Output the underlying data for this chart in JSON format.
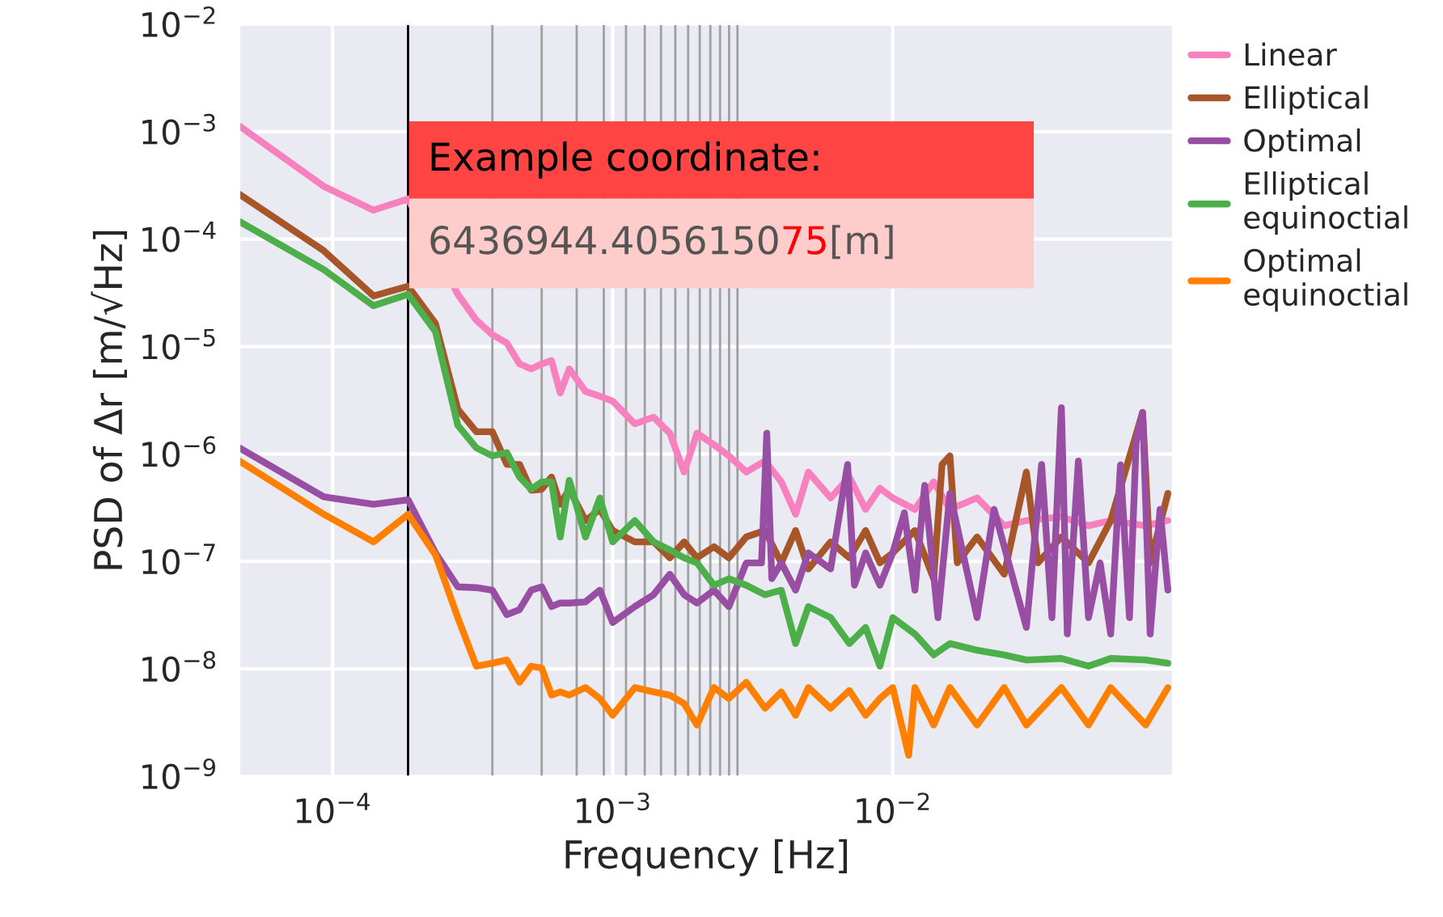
{
  "chart_data": {
    "type": "line",
    "xlabel": "Frequency [Hz]",
    "ylabel": "PSD of Δr [m/√Hz]",
    "log": "xy",
    "grid": true,
    "legend": "right",
    "marker": "none",
    "line_style": "solid",
    "xlim": [
      4.65e-05,
      0.1
    ],
    "ylim": [
      1e-09,
      0.01
    ],
    "xticks": [
      {
        "value": 0.0001,
        "label": "10$^{−4}$"
      },
      {
        "value": 0.001,
        "label": "10$^{−3}$"
      },
      {
        "value": 0.01,
        "label": "10$^{−2}$"
      }
    ],
    "yticks": [
      {
        "value": 1e-09,
        "label": "10$^{−9}$"
      },
      {
        "value": 1e-08,
        "label": "10$^{−8}$"
      },
      {
        "value": 1e-07,
        "label": "10$^{−7}$"
      },
      {
        "value": 1e-06,
        "label": "10$^{−6}$"
      },
      {
        "value": 1e-05,
        "label": "10$^{−5}$"
      },
      {
        "value": 0.0001,
        "label": "10$^{−4}$"
      },
      {
        "value": 0.001,
        "label": "10$^{−3}$"
      },
      {
        "value": 0.01,
        "label": "10$^{−2}$"
      }
    ],
    "ref_lines": [
      {
        "axis": "x",
        "value": 0.000186,
        "color": "#000000"
      },
      {
        "axis": "x",
        "value": 0.000372,
        "color": "#a0a0a0"
      },
      {
        "axis": "x",
        "value": 0.000558,
        "color": "#a0a0a0"
      },
      {
        "axis": "x",
        "value": 0.000744,
        "color": "#a0a0a0"
      },
      {
        "axis": "x",
        "value": 0.00093,
        "color": "#a0a0a0"
      },
      {
        "axis": "x",
        "value": 0.001116,
        "color": "#a0a0a0"
      },
      {
        "axis": "x",
        "value": 0.001302,
        "color": "#a0a0a0"
      },
      {
        "axis": "x",
        "value": 0.001488,
        "color": "#a0a0a0"
      },
      {
        "axis": "x",
        "value": 0.001674,
        "color": "#a0a0a0"
      },
      {
        "axis": "x",
        "value": 0.00186,
        "color": "#a0a0a0"
      },
      {
        "axis": "x",
        "value": 0.002046,
        "color": "#a0a0a0"
      },
      {
        "axis": "x",
        "value": 0.002232,
        "color": "#a0a0a0"
      },
      {
        "axis": "x",
        "value": 0.002418,
        "color": "#a0a0a0"
      },
      {
        "axis": "x",
        "value": 0.002604,
        "color": "#a0a0a0"
      },
      {
        "axis": "x",
        "value": 0.00279,
        "color": "#a0a0a0"
      }
    ],
    "annotations": [
      "Example coordinate:",
      "6436944.405615075[m]"
    ],
    "series": [
      {
        "name": "Linear",
        "color": "#f781bf",
        "x": [
          4.65e-05,
          9.3e-05,
          0.00014,
          0.000186,
          0.000233,
          0.00028,
          0.000326,
          0.000372,
          0.000419,
          0.000465,
          0.000512,
          0.000558,
          0.000605,
          0.00065,
          0.0007,
          0.0008,
          0.0009,
          0.001,
          0.0012,
          0.0014,
          0.0016,
          0.0018,
          0.002,
          0.0023,
          0.0026,
          0.003,
          0.0035,
          0.004,
          0.0045,
          0.005,
          0.006,
          0.007,
          0.008,
          0.009,
          0.01,
          0.012,
          0.014,
          0.016,
          0.02,
          0.025,
          0.03,
          0.04,
          0.05,
          0.06,
          0.08,
          0.096
        ],
        "values": [
          0.00113,
          0.00031,
          0.000186,
          0.000237,
          null,
          3.06e-05,
          1.76e-05,
          1.29e-05,
          1.08e-05,
          6.9e-06,
          6.2e-06,
          6.9e-06,
          7.4e-06,
          3.7e-06,
          6.2e-06,
          3.83e-06,
          3.45e-06,
          3.1e-06,
          1.91e-06,
          2.2e-06,
          1.56e-06,
          6.8e-07,
          1.56e-06,
          1.22e-06,
          9.6e-07,
          6.8e-07,
          8.6e-07,
          5.5e-07,
          2.75e-07,
          6.8e-07,
          3.9e-07,
          6.1e-07,
          3.05e-07,
          4.8e-07,
          3.9e-07,
          3.05e-07,
          5.5e-07,
          3.05e-07,
          3.9e-07,
          2.15e-07,
          2.4e-07,
          2.6e-07,
          2.15e-07,
          2.4e-07,
          2.15e-07,
          2.4e-07
        ]
      },
      {
        "name": "Elliptical",
        "color": "#a65628",
        "x": [
          4.65e-05,
          9.3e-05,
          0.00014,
          0.000186,
          0.000233,
          0.00028,
          0.000326,
          0.000372,
          0.000419,
          0.000465,
          0.000512,
          0.000558,
          0.000605,
          0.00065,
          0.0007,
          0.0008,
          0.0009,
          0.001,
          0.0012,
          0.0014,
          0.0016,
          0.0018,
          0.002,
          0.0023,
          0.0026,
          0.003,
          0.0035,
          0.004,
          0.0045,
          0.005,
          0.006,
          0.007,
          0.008,
          0.009,
          0.01,
          0.012,
          0.014,
          0.015,
          0.016,
          0.017,
          0.02,
          0.025,
          0.03,
          0.033,
          0.04,
          0.05,
          0.06,
          0.078,
          0.083,
          0.096
        ],
        "values": [
          0.000262,
          7.8e-05,
          2.96e-05,
          3.64e-05,
          1.64e-05,
          2.61e-06,
          1.61e-06,
          1.61e-06,
          8e-07,
          8e-07,
          4.6e-07,
          4.7e-07,
          6.1e-07,
          3.4e-07,
          4.7e-07,
          2.4e-07,
          3.05e-07,
          1.94e-07,
          1.52e-07,
          1.52e-07,
          1.08e-07,
          1.52e-07,
          1.08e-07,
          1.37e-07,
          1.08e-07,
          1.69e-07,
          1.94e-07,
          9.7e-08,
          1.94e-07,
          8.5e-08,
          1.52e-07,
          1.08e-07,
          1.94e-07,
          9.7e-08,
          1.2e-07,
          1.94e-07,
          6.9e-08,
          8e-07,
          9.6e-07,
          9.7e-08,
          1.69e-07,
          7.6e-08,
          6.8e-07,
          9.7e-08,
          1.69e-07,
          9.7e-08,
          2.4e-07,
          2.44e-06,
          9.7e-08,
          4.3e-07
        ]
      },
      {
        "name": "Optimal",
        "color": "#984ea3",
        "x": [
          4.65e-05,
          9.3e-05,
          0.00014,
          0.000186,
          0.000233,
          0.00028,
          0.000326,
          0.000372,
          0.000419,
          0.000465,
          0.000512,
          0.000558,
          0.000605,
          0.00065,
          0.0007,
          0.0008,
          0.0009,
          0.001,
          0.0012,
          0.0014,
          0.0016,
          0.0018,
          0.002,
          0.0023,
          0.0026,
          0.003,
          0.0034,
          0.00355,
          0.0037,
          0.004,
          0.0045,
          0.005,
          0.006,
          0.0069,
          0.0073,
          0.008,
          0.009,
          0.01,
          0.011,
          0.012,
          0.013,
          0.0145,
          0.016,
          0.02,
          0.023,
          0.03,
          0.034,
          0.037,
          0.04,
          0.042,
          0.046,
          0.05,
          0.055,
          0.06,
          0.065,
          0.07,
          0.074,
          0.078,
          0.083,
          0.09,
          0.096
        ],
        "values": [
          1.14e-06,
          4e-07,
          3.4e-07,
          3.75e-07,
          1.2e-07,
          5.8e-08,
          5.7e-08,
          5.4e-08,
          3.2e-08,
          3.56e-08,
          5.4e-08,
          5.8e-08,
          3.8e-08,
          4.1e-08,
          4.1e-08,
          4.2e-08,
          5.4e-08,
          2.7e-08,
          3.8e-08,
          4.9e-08,
          7.6e-08,
          4.9e-08,
          4.1e-08,
          5.4e-08,
          3.8e-08,
          9.7e-08,
          9.7e-08,
          1.56e-06,
          6.9e-08,
          9.7e-08,
          5.4e-08,
          1.2e-07,
          8.5e-08,
          8e-07,
          6e-08,
          1.2e-07,
          6e-08,
          1.2e-07,
          2.84e-07,
          5.4e-08,
          5.1e-07,
          3e-08,
          4.3e-07,
          3e-08,
          3.05e-07,
          2.43e-08,
          8e-07,
          3e-08,
          2.7e-06,
          2.11e-08,
          8.6e-07,
          3e-08,
          9.7e-08,
          2.11e-08,
          7.9e-07,
          3e-08,
          1.31e-06,
          2.44e-06,
          2.11e-08,
          3.05e-07,
          5.4e-08
        ]
      },
      {
        "name": "Elliptical\nequinoctial",
        "color": "#4daf4a",
        "x": [
          4.65e-05,
          9.3e-05,
          0.00014,
          0.000186,
          0.000233,
          0.00028,
          0.000326,
          0.000372,
          0.000419,
          0.000465,
          0.000512,
          0.000558,
          0.000605,
          0.00065,
          0.0007,
          0.0008,
          0.0009,
          0.001,
          0.0012,
          0.0014,
          0.0016,
          0.0018,
          0.002,
          0.0023,
          0.0026,
          0.003,
          0.0035,
          0.004,
          0.0045,
          0.005,
          0.006,
          0.007,
          0.008,
          0.009,
          0.01,
          0.012,
          0.014,
          0.016,
          0.02,
          0.025,
          0.03,
          0.04,
          0.05,
          0.06,
          0.08,
          0.096
        ],
        "values": [
          0.000146,
          5.2e-05,
          2.4e-05,
          3.06e-05,
          1.38e-05,
          1.85e-06,
          1.14e-06,
          9.6e-07,
          1.03e-06,
          6.1e-07,
          4.7e-07,
          5.5e-07,
          5.5e-07,
          1.69e-07,
          5.7e-07,
          1.69e-07,
          3.9e-07,
          1.52e-07,
          2.4e-07,
          1.52e-07,
          1.28e-07,
          1.08e-07,
          9.7e-08,
          6e-08,
          6.9e-08,
          6e-08,
          4.9e-08,
          5.4e-08,
          1.72e-08,
          3.8e-08,
          3e-08,
          1.72e-08,
          2.43e-08,
          1.06e-08,
          3e-08,
          2.11e-08,
          1.35e-08,
          1.72e-08,
          1.49e-08,
          1.35e-08,
          1.21e-08,
          1.25e-08,
          1.06e-08,
          1.25e-08,
          1.21e-08,
          1.13e-08
        ]
      },
      {
        "name": "Optimal\nequinoctial",
        "color": "#ff7f00",
        "x": [
          4.65e-05,
          9.3e-05,
          0.00014,
          0.000186,
          0.000233,
          0.00028,
          0.000326,
          0.000372,
          0.000419,
          0.000465,
          0.000512,
          0.000558,
          0.000605,
          0.00065,
          0.0007,
          0.0008,
          0.0009,
          0.001,
          0.0012,
          0.0014,
          0.0016,
          0.0018,
          0.002,
          0.0023,
          0.0026,
          0.003,
          0.0035,
          0.004,
          0.0045,
          0.005,
          0.006,
          0.007,
          0.008,
          0.009,
          0.01,
          0.0114,
          0.012,
          0.014,
          0.016,
          0.02,
          0.025,
          0.03,
          0.04,
          0.05,
          0.06,
          0.08,
          0.096
        ],
        "values": [
          8.6e-07,
          2.75e-07,
          1.52e-07,
          2.75e-07,
          1.15e-07,
          3e-08,
          1.06e-08,
          1.13e-08,
          1.21e-08,
          7.5e-09,
          1.06e-08,
          1.02e-08,
          5.7e-09,
          6.1e-09,
          5.7e-09,
          6.7e-09,
          5.3e-09,
          3.7e-09,
          6.7e-09,
          6.1e-09,
          5.7e-09,
          4.75e-09,
          3e-09,
          6.7e-09,
          5.3e-09,
          7.5e-09,
          4.3e-09,
          6.1e-09,
          3.7e-09,
          6.7e-09,
          4.3e-09,
          6.3e-09,
          3.7e-09,
          5.3e-09,
          6.7e-09,
          1.57e-09,
          6.7e-09,
          3e-09,
          6.7e-09,
          3e-09,
          6.7e-09,
          3e-09,
          6.7e-09,
          3e-09,
          6.7e-09,
          3e-09,
          6.7e-09
        ]
      }
    ]
  }
}
